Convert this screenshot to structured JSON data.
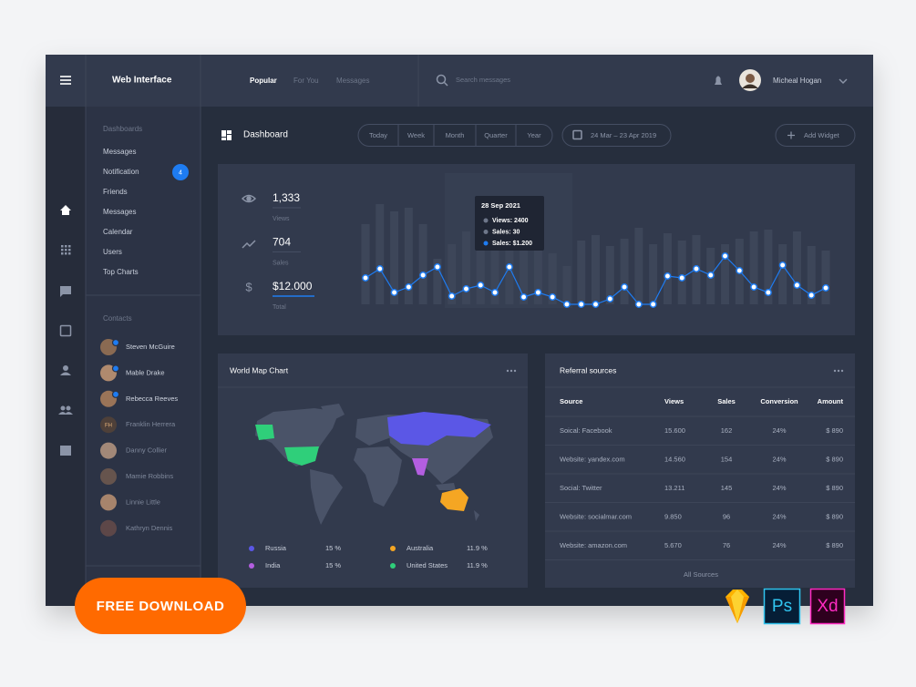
{
  "brand": "Web Interface",
  "tabs": [
    "Popular",
    "For You",
    "Messages"
  ],
  "search_placeholder": "Search messages",
  "user": "Micheal Hogan",
  "sidebar": {
    "section": "Dashboards",
    "items": [
      "Messages",
      "Notification",
      "Friends",
      "Messages",
      "Calendar",
      "Users",
      "Top Charts"
    ],
    "badge": 4,
    "contacts_title": "Contacts",
    "contacts": [
      {
        "name": "Steven McGuire",
        "online": true
      },
      {
        "name": "Mable Drake",
        "online": true
      },
      {
        "name": "Rebecca Reeves",
        "online": true
      },
      {
        "name": "Franklin Herrera",
        "online": false,
        "initials": "FH"
      },
      {
        "name": "Danny Collier",
        "online": false
      },
      {
        "name": "Mamie Robbins",
        "online": false
      },
      {
        "name": "Linnie Little",
        "online": false
      },
      {
        "name": "Kathryn Dennis",
        "online": false
      }
    ]
  },
  "page_title": "Dashboard",
  "ranges": [
    "Today",
    "Week",
    "Month",
    "Quarter",
    "Year"
  ],
  "date_range": "24 Mar – 23 Apr 2019",
  "add_widget": "Add Widget",
  "stats": [
    {
      "value": "1,333",
      "label": "Views"
    },
    {
      "value": "704",
      "label": "Sales"
    },
    {
      "value": "$12.000",
      "label": "Total"
    }
  ],
  "activity_chart": {
    "type": "bar",
    "bars": [
      88,
      110,
      102,
      106,
      88,
      50,
      66,
      80,
      96,
      100,
      108,
      60,
      74,
      56,
      42,
      70,
      76,
      64,
      72,
      84,
      66,
      78,
      70,
      76,
      62,
      66,
      72,
      80,
      82,
      66,
      80,
      64,
      59
    ],
    "line": [
      29,
      39,
      13,
      19,
      32,
      41,
      9,
      17,
      21,
      13,
      41,
      8,
      13,
      8,
      0,
      0,
      0,
      6,
      19,
      0,
      0,
      31,
      29,
      39,
      32,
      53,
      37,
      19,
      13,
      43,
      21,
      10,
      18
    ],
    "ylim": [
      0,
      120
    ],
    "bar_color": "#3d4659",
    "line_color": "#1e7cf2",
    "tooltip": {
      "date": "28 Sep 2021",
      "lines": [
        "Views: 2400",
        "Sales: 30",
        "Sales: $1.200"
      ]
    }
  },
  "map": {
    "title": "World Map Chart",
    "legend": [
      {
        "name": "Russia",
        "value": "15 %",
        "color": "#5b57e6"
      },
      {
        "name": "India",
        "value": "15 %",
        "color": "#b35ee0"
      },
      {
        "name": "Australia",
        "value": "11.9 %",
        "color": "#f5a623"
      },
      {
        "name": "United States",
        "value": "11.9 %",
        "color": "#2fcf7a"
      }
    ]
  },
  "referrals": {
    "title": "Referral sources",
    "columns": [
      "Source",
      "Views",
      "Sales",
      "Conversion",
      "Amount"
    ],
    "rows": [
      [
        "Soical: Facebook",
        "15.600",
        "162",
        "24%",
        "$ 890"
      ],
      [
        "Website: yandex.com",
        "14.560",
        "154",
        "24%",
        "$ 890"
      ],
      [
        "Social: Twitter",
        "13.211",
        "145",
        "24%",
        "$ 890"
      ],
      [
        "Website: socialmar.com",
        "9.850",
        "96",
        "24%",
        "$ 890"
      ],
      [
        "Website: amazon.com",
        "5.670",
        "76",
        "24%",
        "$ 890"
      ]
    ],
    "footer": "All Sources"
  },
  "download": "FREE DOWNLOAD",
  "apps": [
    "Ps",
    "Xd"
  ]
}
